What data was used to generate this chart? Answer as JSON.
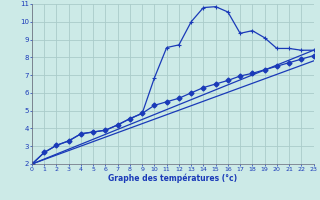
{
  "xlabel": "Graphe des températures (°c)",
  "background_color": "#cceae7",
  "grid_color": "#aaccca",
  "line_color": "#1a3ab8",
  "xlim": [
    0,
    23
  ],
  "ylim": [
    2,
    11
  ],
  "xticks": [
    0,
    1,
    2,
    3,
    4,
    5,
    6,
    7,
    8,
    9,
    10,
    11,
    12,
    13,
    14,
    15,
    16,
    17,
    18,
    19,
    20,
    21,
    22,
    23
  ],
  "yticks": [
    2,
    3,
    4,
    5,
    6,
    7,
    8,
    9,
    10,
    11
  ],
  "curve1_x": [
    0,
    1,
    2,
    3,
    4,
    5,
    6,
    7,
    8,
    9,
    10,
    11,
    12,
    13,
    14,
    15,
    16,
    17,
    18,
    19,
    20,
    21,
    22,
    23
  ],
  "curve1_y": [
    2.0,
    2.65,
    3.05,
    3.3,
    3.7,
    3.8,
    3.9,
    4.2,
    4.55,
    4.85,
    6.85,
    8.55,
    8.7,
    10.0,
    10.8,
    10.85,
    10.55,
    9.35,
    9.5,
    9.1,
    8.5,
    8.5,
    8.4,
    8.4
  ],
  "curve2_x": [
    0,
    1,
    2,
    3,
    4,
    5,
    6,
    7,
    8,
    9,
    10,
    11,
    12,
    13,
    14,
    15,
    16,
    17,
    18,
    19,
    20,
    21,
    22,
    23
  ],
  "curve2_y": [
    2.0,
    2.65,
    3.05,
    3.3,
    3.7,
    3.8,
    3.9,
    4.2,
    4.55,
    4.85,
    5.3,
    5.5,
    5.7,
    6.0,
    6.3,
    6.5,
    6.7,
    6.95,
    7.1,
    7.3,
    7.5,
    7.7,
    7.9,
    8.1
  ],
  "curve3_x": [
    0,
    23
  ],
  "curve3_y": [
    2.0,
    8.4
  ],
  "curve4_x": [
    0,
    23
  ],
  "curve4_y": [
    2.0,
    7.8
  ],
  "markersize": 2.5
}
